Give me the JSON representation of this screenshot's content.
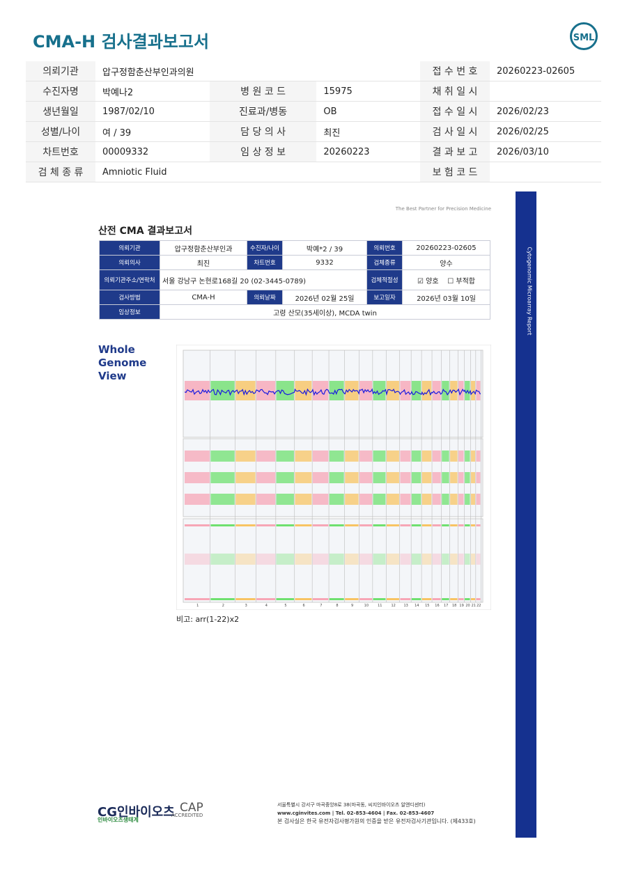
{
  "header": {
    "title": "CMA-H 검사결과보고서",
    "logo": "SML"
  },
  "summary_table": {
    "rows": [
      [
        "의뢰기관",
        "압구정함춘산부인과의원",
        "접 수 번 호",
        "20260223-02605"
      ],
      [
        "수진자명",
        "박예나2",
        "병 원 코 드",
        "15975",
        "채 취 일 시"
      ],
      [
        "생년월일",
        "1987/02/10",
        "진료과/병동",
        "OB",
        "접 수 일 시",
        "2026/02/23"
      ],
      [
        "성별/나이",
        "여 / 39",
        "담 당 의 사",
        "최진",
        "검 사 일 시",
        "2026/02/25"
      ],
      [
        "차트번호",
        "00009332",
        "임 상 정 보",
        "20260223",
        "결 과 보 고",
        "2026/03/10"
      ],
      [
        "검 체 종 류",
        "Amniotic Fluid",
        "보 험 코 드"
      ]
    ]
  },
  "report": {
    "tagline": "The Best Partner for Precision Medicine",
    "title": "산전 CMA 결과보고서",
    "table": {
      "rows": [
        [
          "의뢰기관",
          "압구정함춘산부인과",
          "수진자/나이",
          "박예*2 / 39",
          "의뢰번호",
          "20260223-02605"
        ],
        [
          "의뢰의사",
          "최진",
          "차트번호",
          "9332",
          "검체종류",
          "양수"
        ],
        [
          "의뢰기관주소/연락처",
          "서울 강남구 논현로168길 20 (02-3445-0789)",
          "검체적절성",
          "☑ 양호    ☐ 부적합"
        ],
        [
          "검사방법",
          "CMA-H",
          "의뢰날짜",
          "2026년 02월 25일",
          "보고일자",
          "2026년 03월 10일"
        ],
        [
          "임상정보",
          "고령 산모(35세이상), MCDA twin"
        ]
      ]
    },
    "section_title": [
      "Whole",
      "Genome",
      "View"
    ],
    "chromosomes": [
      "1",
      "2",
      "3",
      "4",
      "5",
      "6",
      "7",
      "8",
      "9",
      "10",
      "11",
      "12",
      "13",
      "14",
      "15",
      "16",
      "17",
      "18",
      "19",
      "20",
      "21",
      "22"
    ],
    "remark": "비고: arr(1-22)x2",
    "side_label": "Cytogenomic Microarray Report"
  },
  "footer": {
    "logo": "CG인바이오츠",
    "logo_sub": "인바이오츠생태계",
    "cap": "CAP",
    "cap_sub": "ACCREDITED",
    "address_lines": [
      "서울특별시 강서구 마곡중앙8로 38(마곡동, 씨지인바이오츠 알앤디센터)",
      "www.cginvites.com | Tel. 02-853-4604 | Fax. 02-853-4607",
      "본 검사실은 한국 유전자검사평가원의 인증을 받은 유전자검사기관입니다. (제433호)"
    ]
  }
}
